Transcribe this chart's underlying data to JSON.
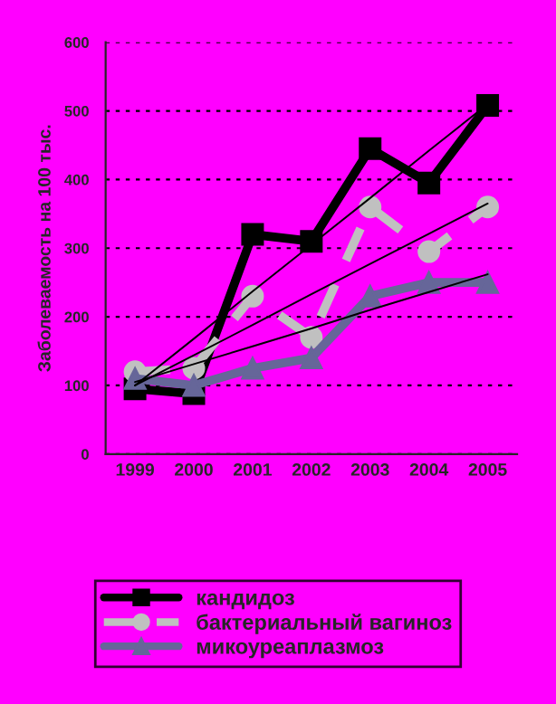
{
  "chart_data": {
    "type": "line",
    "ylabel": "Заболеваемость на 100 тыс.",
    "categories": [
      "1999",
      "2000",
      "2001",
      "2002",
      "2003",
      "2004",
      "2005"
    ],
    "series": [
      {
        "name": "кандидоз",
        "color": "#000000",
        "marker": "square",
        "line_style": "solid",
        "values": [
          95,
          88,
          320,
          310,
          445,
          395,
          508
        ]
      },
      {
        "name": "бактериальный вагиноз",
        "color": "#c0c0c0",
        "marker": "circle",
        "line_style": "dashed",
        "values": [
          120,
          125,
          230,
          170,
          360,
          295,
          360
        ]
      },
      {
        "name": "микоуреаплазмоз",
        "color": "#666699",
        "marker": "triangle",
        "line_style": "solid",
        "values": [
          110,
          100,
          125,
          140,
          230,
          250,
          250
        ]
      },
      {
        "color": "#000000",
        "marker": "none",
        "line_style": "solid",
        "values": [
          100,
          168,
          237,
          305,
          373,
          442,
          510
        ]
      },
      {
        "color": "#000000",
        "marker": "none",
        "line_style": "solid",
        "values": [
          100,
          144,
          188,
          233,
          277,
          321,
          365
        ]
      },
      {
        "color": "#000000",
        "marker": "none",
        "line_style": "solid",
        "values": [
          105,
          131,
          157,
          183,
          210,
          236,
          262
        ]
      }
    ],
    "ylim": [
      0,
      600
    ],
    "yticks": [
      0,
      100,
      200,
      300,
      400,
      500,
      600
    ],
    "grid": "y",
    "legend": "bottom"
  }
}
